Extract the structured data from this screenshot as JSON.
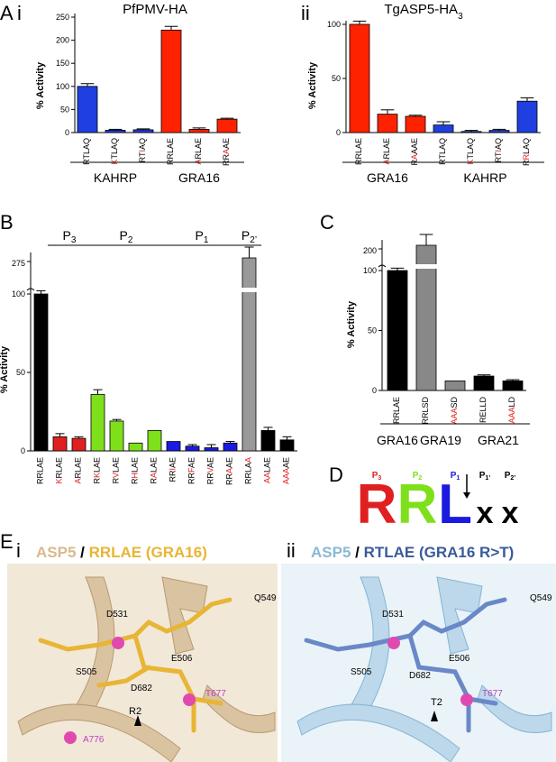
{
  "panel_labels": {
    "A": "A",
    "Ai": "i",
    "Aii": "ii",
    "B": "B",
    "C": "C",
    "D": "D",
    "E": "E",
    "Ei": "i",
    "Eii": "ii"
  },
  "chart_data": [
    {
      "id": "Ai",
      "type": "bar",
      "title_parts": [
        {
          "text": "PfPMV-HA"
        }
      ],
      "ylabel": "% Activity",
      "yticks": [
        0,
        50,
        100,
        150,
        200,
        250
      ],
      "ylim": [
        0,
        250
      ],
      "categories": [
        {
          "pre": "",
          "red": "",
          "post": "RTLAQ",
          "color": "#1f3fe0",
          "value": 100,
          "err": 6
        },
        {
          "pre": "",
          "red": "K",
          "post": "TLAQ",
          "color": "#1f3fe0",
          "value": 5,
          "err": 2
        },
        {
          "pre": "RT",
          "red": "I",
          "post": "AQ",
          "color": "#1f3fe0",
          "value": 6,
          "err": 2
        },
        {
          "pre": "",
          "red": "",
          "post": "RRLAE",
          "color": "#ff2200",
          "value": 222,
          "err": 8
        },
        {
          "pre": "",
          "red": "A",
          "post": "RLAE",
          "color": "#ff2200",
          "value": 7,
          "err": 3
        },
        {
          "pre": "RR",
          "red": "A",
          "post": "AE",
          "color": "#ff2200",
          "value": 29,
          "err": 2
        }
      ],
      "groups": [
        {
          "label": "KAHRP",
          "from": 0,
          "to": 2
        },
        {
          "label": "GRA16",
          "from": 3,
          "to": 5
        }
      ]
    },
    {
      "id": "Aii",
      "type": "bar",
      "title_parts": [
        {
          "text": "TgASP5-HA"
        },
        {
          "text": "3",
          "sub": true
        }
      ],
      "ylabel": "% Activity",
      "yticks": [
        0,
        50,
        100
      ],
      "ylim": [
        0,
        100
      ],
      "categories": [
        {
          "pre": "",
          "red": "",
          "post": "RRLAE",
          "color": "#ff2200",
          "value": 100,
          "err": 3
        },
        {
          "pre": "",
          "red": "A",
          "post": "RLAE",
          "color": "#ff2200",
          "value": 17,
          "err": 4
        },
        {
          "pre": "R",
          "red": "A",
          "post": "AAE",
          "color": "#ff2200",
          "value": 15,
          "err": 1
        },
        {
          "pre": "",
          "red": "",
          "post": "RTLAQ",
          "color": "#1f3fe0",
          "value": 7,
          "err": 3
        },
        {
          "pre": "",
          "red": "K",
          "post": "TLAQ",
          "color": "#1f3fe0",
          "value": 1,
          "err": 1
        },
        {
          "pre": "RT",
          "red": "I",
          "post": "AQ",
          "color": "#1f3fe0",
          "value": 2,
          "err": 1
        },
        {
          "pre": "R",
          "red": "R",
          "post": "LAQ",
          "color": "#1f3fe0",
          "value": 29,
          "err": 3
        }
      ],
      "groups": [
        {
          "label": "GRA16",
          "from": 0,
          "to": 2
        },
        {
          "label": "KAHRP",
          "from": 3,
          "to": 6
        }
      ]
    },
    {
      "id": "B",
      "type": "bar",
      "ylabel": "% Activity",
      "yticks": [
        0,
        50,
        100
      ],
      "break_tick": 275,
      "ylim": [
        0,
        100
      ],
      "position_headers": [
        {
          "label": "P",
          "sub": "3",
          "from": 1,
          "to": 2
        },
        {
          "label": "P",
          "sub": "2",
          "from": 3,
          "to": 6
        },
        {
          "label": "P",
          "sub": "1",
          "from": 7,
          "to": 10
        },
        {
          "label": "P",
          "sub": "2’",
          "from": 11,
          "to": 11
        }
      ],
      "categories": [
        {
          "pre": "",
          "red": "",
          "post": "RRLAE",
          "color": "#000000",
          "value": 100,
          "err": 2
        },
        {
          "pre": "",
          "red": "K",
          "post": "RLAE",
          "color": "#e02020",
          "value": 9,
          "err": 2
        },
        {
          "pre": "",
          "red": "A",
          "post": "RLAE",
          "color": "#e02020",
          "value": 8,
          "err": 1
        },
        {
          "pre": "R",
          "red": "K",
          "post": "LAE",
          "color": "#7ee01b",
          "value": 36,
          "err": 3
        },
        {
          "pre": "R",
          "red": "V",
          "post": "LAE",
          "color": "#7ee01b",
          "value": 19,
          "err": 1
        },
        {
          "pre": "R",
          "red": "H",
          "post": "LAE",
          "color": "#7ee01b",
          "value": 5,
          "err": 0
        },
        {
          "pre": "R",
          "red": "A",
          "post": "LAE",
          "color": "#7ee01b",
          "value": 13,
          "err": 0
        },
        {
          "pre": "RR",
          "red": "I",
          "post": "AE",
          "color": "#1a1ae0",
          "value": 6,
          "err": 0
        },
        {
          "pre": "RR",
          "red": "F",
          "post": "AE",
          "color": "#1a1ae0",
          "value": 3,
          "err": 1
        },
        {
          "pre": "RR",
          "red": "V",
          "post": "AE",
          "color": "#1a1ae0",
          "value": 2,
          "err": 2
        },
        {
          "pre": "RR",
          "red": "A",
          "post": "AE",
          "color": "#1a1ae0",
          "value": 5,
          "err": 1
        },
        {
          "pre": "RRLA",
          "red": "A",
          "post": "",
          "color": "#999999",
          "value": 270,
          "err": 12,
          "broken": true
        },
        {
          "pre": "",
          "red": "AA",
          "post": "LAE",
          "color": "#000000",
          "value": 13,
          "err": 2
        },
        {
          "pre": "",
          "red": "AAA",
          "post": "AE",
          "color": "#000000",
          "value": 7,
          "err": 2
        }
      ]
    },
    {
      "id": "C",
      "type": "bar",
      "ylabel": "% Activity",
      "yticks": [
        0,
        50,
        100
      ],
      "break_tick": 200,
      "ylim": [
        0,
        100
      ],
      "categories": [
        {
          "pre": "",
          "red": "",
          "post": "RRLAE",
          "color": "#000000",
          "value": 100,
          "err": 2
        },
        {
          "pre": "",
          "red": "",
          "post": "RRLSD",
          "color": "#888888",
          "value": 200,
          "err": 25,
          "broken": true
        },
        {
          "pre": "",
          "red": "AAA",
          "post": "SD",
          "color": "#888888",
          "value": 8,
          "err": 0
        },
        {
          "pre": "",
          "red": "",
          "post": "RELLD",
          "color": "#000000",
          "value": 12,
          "err": 1
        },
        {
          "pre": "",
          "red": "AAA",
          "post": "LD",
          "color": "#000000",
          "value": 8,
          "err": 1
        }
      ],
      "groups": [
        {
          "label": "GRA16",
          "from": 0,
          "to": 0
        },
        {
          "label": "GRA19",
          "from": 1,
          "to": 2
        },
        {
          "label": "GRA21",
          "from": 3,
          "to": 4
        }
      ]
    }
  ],
  "motif": {
    "positions": [
      {
        "label": "P",
        "sub": "3",
        "color": "#e02020"
      },
      {
        "label": "P",
        "sub": "2",
        "color": "#7ee01b"
      },
      {
        "label": "P",
        "sub": "1",
        "color": "#1a1ae0"
      },
      {
        "label": "P",
        "sub": "1’",
        "color": "#000000"
      },
      {
        "label": "P",
        "sub": "2’",
        "color": "#000000"
      }
    ],
    "letters": [
      {
        "text": "R",
        "color": "#e02020"
      },
      {
        "text": "R",
        "color": "#7ee01b"
      },
      {
        "text": "L",
        "color": "#1a1ae0"
      },
      {
        "text": "x",
        "color": "#000000"
      },
      {
        "text": "x",
        "color": "#000000"
      }
    ]
  },
  "structure_panels": [
    {
      "id": "Ei",
      "title": [
        {
          "text": "ASP5",
          "color": "#d9b98e"
        },
        {
          "text": " / ",
          "color": "#000000"
        },
        {
          "text": "RRLAE (GRA16)",
          "color": "#e8b534"
        }
      ],
      "labels": [
        "D531",
        "Q549",
        "S505",
        "E506",
        "D682",
        "T677",
        "R2",
        "A776"
      ]
    },
    {
      "id": "Eii",
      "title": [
        {
          "text": "ASP5",
          "color": "#8bb8d6"
        },
        {
          "text": " / ",
          "color": "#000000"
        },
        {
          "text": "RTLAE (GRA16 R>T)",
          "color": "#3a5a9a"
        }
      ],
      "labels": [
        "D531",
        "Q549",
        "S505",
        "E506",
        "D682",
        "T677",
        "T2"
      ]
    }
  ]
}
